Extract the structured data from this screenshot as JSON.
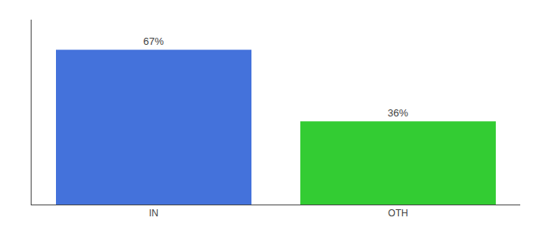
{
  "chart_data": {
    "type": "bar",
    "categories": [
      "IN",
      "OTH"
    ],
    "values": [
      67,
      36
    ],
    "value_labels": [
      "67%",
      "36%"
    ],
    "colors": [
      "#4472db",
      "#33cc33"
    ],
    "ylim": [
      0,
      80
    ],
    "data_labels": true,
    "tick_labels": "x",
    "grid": false
  }
}
